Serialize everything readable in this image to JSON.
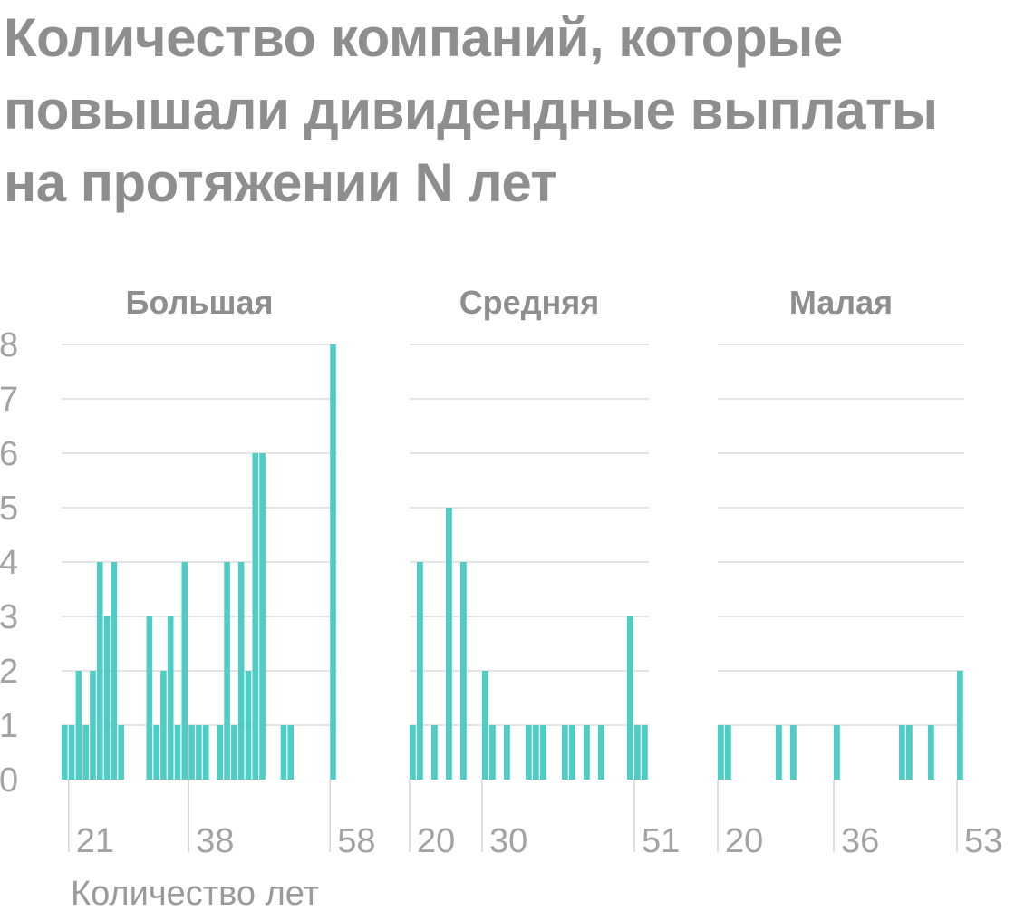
{
  "title": "Количество компаний, которые повышали дивидендные выплаты на протяжении N лет",
  "chart_data": {
    "type": "bar",
    "title": "Количество компаний, которые повышали дивидендные выплаты на протяжении N лет",
    "xlabel": "Количество лет",
    "ylabel": "",
    "ylim": [
      0,
      8
    ],
    "y_ticks": [
      0,
      1,
      2,
      3,
      4,
      5,
      6,
      7,
      8
    ],
    "grid": true,
    "bar_color": "#4ecdc4",
    "panels": [
      {
        "name": "Большая",
        "x_ticks": [
          21,
          38,
          58
        ],
        "x": [
          20,
          21,
          22,
          23,
          24,
          25,
          26,
          27,
          28,
          29,
          30,
          31,
          32,
          33,
          34,
          35,
          36,
          37,
          38,
          39,
          40,
          41,
          42,
          43,
          44,
          45,
          46,
          47,
          48,
          49,
          50,
          51,
          52,
          53,
          54,
          55,
          56,
          57,
          58
        ],
        "values": [
          1,
          1,
          2,
          1,
          2,
          4,
          3,
          4,
          1,
          0,
          0,
          0,
          3,
          1,
          2,
          3,
          1,
          4,
          1,
          1,
          1,
          0,
          1,
          4,
          1,
          4,
          2,
          6,
          6,
          0,
          0,
          1,
          1,
          0,
          0,
          0,
          0,
          0,
          8
        ]
      },
      {
        "name": "Средняя",
        "x_ticks": [
          20,
          30,
          51
        ],
        "x": [
          20,
          21,
          22,
          23,
          24,
          25,
          26,
          27,
          28,
          29,
          30,
          31,
          32,
          33,
          34,
          35,
          36,
          37,
          38,
          39,
          40,
          41,
          42,
          43,
          44,
          45,
          46,
          47,
          48,
          49,
          50,
          51,
          52
        ],
        "values": [
          1,
          4,
          0,
          1,
          0,
          5,
          0,
          4,
          0,
          0,
          2,
          1,
          0,
          1,
          0,
          0,
          1,
          1,
          1,
          0,
          0,
          1,
          1,
          0,
          1,
          0,
          1,
          0,
          0,
          0,
          3,
          1,
          1
        ]
      },
      {
        "name": "Малая",
        "x_ticks": [
          20,
          36,
          53
        ],
        "x": [
          20,
          21,
          22,
          23,
          24,
          25,
          26,
          27,
          28,
          29,
          30,
          31,
          32,
          33,
          34,
          35,
          36,
          37,
          38,
          39,
          40,
          41,
          42,
          43,
          44,
          45,
          46,
          47,
          48,
          49,
          50,
          51,
          52,
          53
        ],
        "values": [
          1,
          1,
          0,
          0,
          0,
          0,
          0,
          0,
          1,
          0,
          1,
          0,
          0,
          0,
          0,
          0,
          1,
          0,
          0,
          0,
          0,
          0,
          0,
          0,
          0,
          1,
          1,
          0,
          0,
          1,
          0,
          0,
          0,
          2
        ]
      }
    ]
  }
}
